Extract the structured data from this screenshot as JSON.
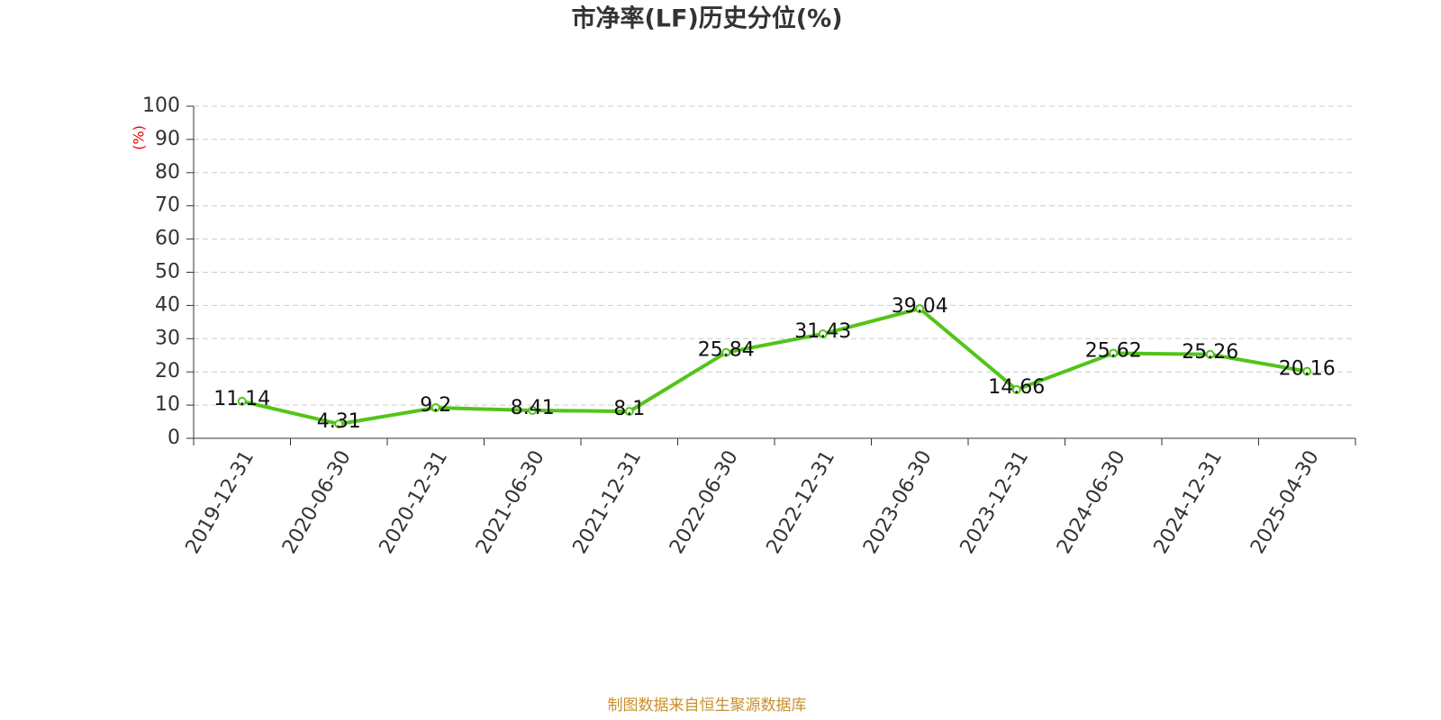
{
  "chart_data": {
    "type": "line",
    "title": "市净率(LF)历史分位(%)",
    "y_label": "(%)",
    "categories": [
      "2019-12-31",
      "2020-06-30",
      "2020-12-31",
      "2021-06-30",
      "2021-12-31",
      "2022-06-30",
      "2022-12-31",
      "2023-06-30",
      "2023-12-31",
      "2024-06-30",
      "2024-12-31",
      "2025-04-30"
    ],
    "values": [
      11.14,
      4.31,
      9.2,
      8.41,
      8.1,
      25.84,
      31.43,
      39.04,
      14.66,
      25.62,
      25.26,
      20.16
    ],
    "color": "#52c41a",
    "ylim": [
      0,
      100
    ],
    "yticks": [
      0,
      10,
      20,
      30,
      40,
      50,
      60,
      70,
      80,
      90,
      100
    ],
    "grid": true,
    "source": "制图数据来自恒生聚源数据库"
  }
}
